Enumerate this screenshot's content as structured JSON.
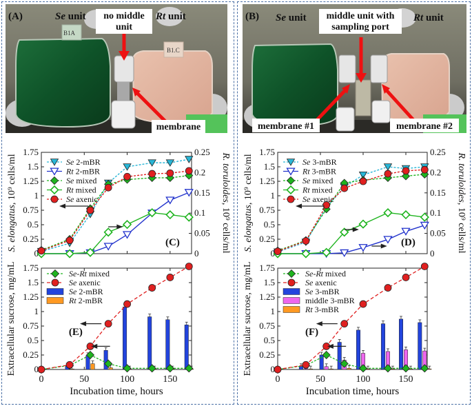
{
  "photos": {
    "a": {
      "panel_letter": "(A)",
      "se_prefix": "Se",
      "se_suffix": " unit",
      "middle_line1": "no middle",
      "middle_line2": "unit",
      "rt_prefix": "Rt",
      "rt_suffix": " unit",
      "membrane": "membrane",
      "tag_left": "B1A",
      "tag_right": "B1.C"
    },
    "b": {
      "panel_letter": "(B)",
      "se_prefix": "Se",
      "se_suffix": " unit",
      "middle_line1": "middle unit with",
      "middle_line2": "sampling port",
      "rt_prefix": "Rt",
      "rt_suffix": " unit",
      "membrane1": "membrane #1",
      "membrane2": "membrane #2"
    }
  },
  "colors": {
    "se_mbr": "#29b6d6",
    "rt_mbr": "#2233cc",
    "mixed": "#1fb41f",
    "axenic": "#e02020",
    "bar_se": "#2244dd",
    "bar_middle": "#ee66ee",
    "bar_rt": "#ff9922"
  },
  "chart_data": [
    {
      "id": "C",
      "type": "line",
      "panel_letter": "(C)",
      "ylabel_left_italic": "S. elongatus",
      "ylabel_left_rest": ", 10⁹ cells/ml",
      "ylabel_right_italic": "R. toruloides",
      "ylabel_right_rest": ", 10⁹ cells/ml",
      "ylim_left": [
        0,
        1.75
      ],
      "ylim_right": [
        0,
        0.25
      ],
      "xlim": [
        0,
        175
      ],
      "yticks_left": [
        "0",
        "0.25",
        "0.5",
        "0.75",
        "1",
        "1.25",
        "1.5",
        "1.75"
      ],
      "yticks_right": [
        "0",
        "0.05",
        "0.1",
        "0.15",
        "0.2",
        "0.25"
      ],
      "legend": [
        {
          "italic": "Se",
          "rest": " 2-mBR"
        },
        {
          "italic": "Rt",
          "rest": " 2-mBR"
        },
        {
          "italic": "Se",
          "rest": " mixed"
        },
        {
          "italic": "Rt",
          "rest": " mixed"
        },
        {
          "italic": "Se",
          "rest": " axenic"
        }
      ],
      "series": [
        {
          "name": "Se 2-mBR",
          "axis": "left",
          "x": [
            0,
            33,
            57,
            78,
            100,
            129,
            150,
            172
          ],
          "y": [
            0.04,
            0.18,
            0.68,
            1.22,
            1.5,
            1.57,
            1.57,
            1.63
          ]
        },
        {
          "name": "Rt 2-mBR",
          "axis": "right",
          "x": [
            0,
            33,
            57,
            78,
            100,
            129,
            150,
            172
          ],
          "y": [
            0.0,
            0.0,
            0.002,
            0.018,
            0.047,
            0.1,
            0.132,
            0.151
          ]
        },
        {
          "name": "Se mixed",
          "axis": "left",
          "x": [
            0,
            33,
            57,
            78,
            100,
            129,
            150,
            172
          ],
          "y": [
            0.06,
            0.25,
            0.78,
            1.2,
            1.28,
            1.31,
            1.31,
            1.35
          ]
        },
        {
          "name": "Rt mixed",
          "axis": "right",
          "x": [
            0,
            33,
            57,
            78,
            100,
            129,
            150,
            172
          ],
          "y": [
            0.0,
            0.0,
            0.003,
            0.053,
            0.072,
            0.101,
            0.096,
            0.09
          ]
        },
        {
          "name": "Se axenic",
          "axis": "left",
          "x": [
            0,
            33,
            57,
            78,
            100,
            129,
            150,
            172
          ],
          "y": [
            0.05,
            0.23,
            0.75,
            1.14,
            1.33,
            1.38,
            1.39,
            1.43
          ]
        }
      ]
    },
    {
      "id": "D",
      "type": "line",
      "panel_letter": "(D)",
      "ylabel_left_italic": "S. elongatus",
      "ylabel_left_rest": ", 10⁹ cells/ml",
      "ylabel_right_italic": "R. toruloides",
      "ylabel_right_rest": ", 10⁹ cells/ml",
      "ylim_left": [
        0,
        1.75
      ],
      "ylim_right": [
        0,
        0.25
      ],
      "xlim": [
        0,
        175
      ],
      "yticks_left": [
        "0",
        "0.25",
        "0.5",
        "0.75",
        "1",
        "1.25",
        "1.5",
        "1.75"
      ],
      "yticks_right": [
        "0",
        "0.05",
        "0.1",
        "0.15",
        "0.2",
        "0.25"
      ],
      "legend": [
        {
          "italic": "Se",
          "rest": " 3-mBR"
        },
        {
          "italic": "Rt",
          "rest": " 3-mBR"
        },
        {
          "italic": "Se",
          "rest": " mixed"
        },
        {
          "italic": "Rt",
          "rest": " mixed"
        },
        {
          "italic": "Se",
          "rest": " axenic"
        }
      ],
      "series": [
        {
          "name": "Se 3-mBR",
          "axis": "left",
          "x": [
            0,
            33,
            57,
            78,
            100,
            129,
            150,
            172
          ],
          "y": [
            0.03,
            0.2,
            0.8,
            1.15,
            1.36,
            1.5,
            1.47,
            1.5
          ]
        },
        {
          "name": "Rt 3-mBR",
          "axis": "right",
          "x": [
            0,
            33,
            57,
            78,
            100,
            129,
            150,
            172
          ],
          "y": [
            0.0,
            0.0,
            0.0,
            0.002,
            0.015,
            0.035,
            0.055,
            0.07
          ]
        },
        {
          "name": "Se mixed",
          "axis": "left",
          "x": [
            0,
            33,
            57,
            78,
            100,
            129,
            150,
            172
          ],
          "y": [
            0.05,
            0.23,
            0.77,
            1.22,
            1.27,
            1.31,
            1.34,
            1.37
          ]
        },
        {
          "name": "Rt mixed",
          "axis": "right",
          "x": [
            0,
            33,
            57,
            78,
            100,
            129,
            150,
            172
          ],
          "y": [
            0.0,
            0.0,
            0.003,
            0.053,
            0.073,
            0.101,
            0.096,
            0.09
          ]
        },
        {
          "name": "Se axenic",
          "axis": "left",
          "x": [
            0,
            33,
            57,
            78,
            100,
            129,
            150,
            172
          ],
          "y": [
            0.04,
            0.22,
            0.84,
            1.13,
            1.25,
            1.38,
            1.43,
            1.45
          ]
        }
      ]
    },
    {
      "id": "E",
      "type": "bar",
      "panel_letter": "(E)",
      "ylabel": "Extracellular sucrose, mg/mL",
      "xlabel": "Incubation time, hours",
      "ylim": [
        0,
        1.75
      ],
      "xlim": [
        0,
        175
      ],
      "yticks": [
        "0",
        "0.25",
        "0.5",
        "0.75",
        "1",
        "1.25",
        "1.5",
        "1.75"
      ],
      "xticks": [
        "0",
        "50",
        "100",
        "150"
      ],
      "legend": [
        {
          "italic": "Se-Rt",
          "rest": " mixed"
        },
        {
          "italic": "Se",
          "rest": " axenic"
        },
        {
          "italic": "Se",
          "rest": " 2-mBR"
        },
        {
          "italic": "Rt",
          "rest": " 2-mBR"
        }
      ],
      "lines": [
        {
          "name": "Se-Rt mixed",
          "x": [
            0,
            33,
            57,
            78,
            100,
            129,
            150,
            172
          ],
          "y": [
            0.0,
            0.07,
            0.25,
            0.1,
            0.02,
            0.02,
            0.02,
            0.02
          ]
        },
        {
          "name": "Se axenic",
          "x": [
            0,
            33,
            57,
            78,
            100,
            129,
            150,
            172
          ],
          "y": [
            0.0,
            0.08,
            0.4,
            0.79,
            1.13,
            1.41,
            1.59,
            1.78
          ]
        }
      ],
      "bars": [
        {
          "name": "Se 2-mBR",
          "x": [
            33,
            57,
            78,
            100,
            129,
            150,
            172
          ],
          "y": [
            0.06,
            0.24,
            0.33,
            1.08,
            0.91,
            0.86,
            0.77
          ]
        },
        {
          "name": "Rt 2-mBR",
          "x": [
            33,
            57,
            78,
            100,
            129,
            150,
            172
          ],
          "y": [
            0.01,
            0.1,
            0.03,
            0.01,
            0.01,
            0.01,
            0.01
          ]
        }
      ]
    },
    {
      "id": "F",
      "type": "bar",
      "panel_letter": "(F)",
      "ylabel": "Extracellular sucrose, mg/mL",
      "xlabel": "Incubation time, hours",
      "ylim": [
        0,
        1.75
      ],
      "xlim": [
        0,
        175
      ],
      "yticks": [
        "0",
        "0.25",
        "0.5",
        "0.75",
        "1",
        "1.25",
        "1.5",
        "1.75"
      ],
      "xticks": [
        "0",
        "50",
        "100",
        "150"
      ],
      "legend": [
        {
          "italic": "Se-Rt",
          "rest": " mixed"
        },
        {
          "italic": "Se",
          "rest": " axenic"
        },
        {
          "italic": "Se",
          "rest": " 3-mBR"
        },
        {
          "italic": "",
          "rest": "middle 3-mBR"
        },
        {
          "italic": "Rt",
          "rest": " 3-mBR"
        }
      ],
      "lines": [
        {
          "name": "Se-Rt mixed",
          "x": [
            0,
            33,
            57,
            78,
            100,
            129,
            150,
            172
          ],
          "y": [
            0.0,
            0.07,
            0.25,
            0.1,
            0.02,
            0.02,
            0.02,
            0.02
          ]
        },
        {
          "name": "Se axenic",
          "x": [
            0,
            33,
            57,
            78,
            100,
            129,
            150,
            172
          ],
          "y": [
            0.0,
            0.08,
            0.4,
            0.79,
            1.13,
            1.41,
            1.59,
            1.78
          ]
        }
      ],
      "bars": [
        {
          "name": "Se 3-mBR",
          "x": [
            33,
            57,
            78,
            100,
            129,
            150,
            172
          ],
          "y": [
            0.05,
            0.25,
            0.47,
            0.68,
            0.79,
            0.87,
            0.81
          ]
        },
        {
          "name": "middle 3-mBR",
          "x": [
            33,
            57,
            78,
            100,
            129,
            150,
            172
          ],
          "y": [
            0.02,
            0.05,
            0.16,
            0.28,
            0.31,
            0.34,
            0.32
          ]
        },
        {
          "name": "Rt 3-mBR",
          "x": [
            33,
            57,
            78,
            100,
            129,
            150,
            172
          ],
          "y": [
            0.01,
            0.01,
            0.02,
            0.01,
            0.01,
            0.01,
            0.01
          ]
        }
      ]
    }
  ]
}
